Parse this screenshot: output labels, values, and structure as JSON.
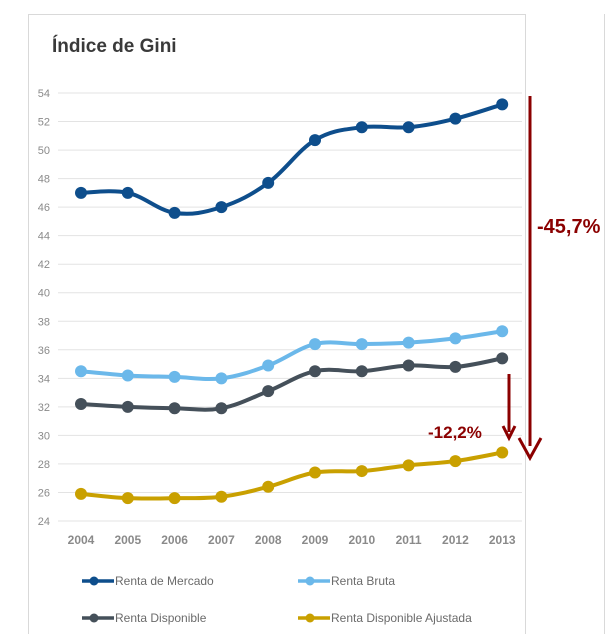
{
  "chart_data": {
    "type": "line",
    "title": "Índice de Gini",
    "categories": [
      "2004",
      "2005",
      "2006",
      "2007",
      "2008",
      "2009",
      "2010",
      "2011",
      "2012",
      "2013"
    ],
    "y_ticks": [
      "24",
      "26",
      "28",
      "30",
      "32",
      "34",
      "36",
      "38",
      "40",
      "42",
      "44",
      "46",
      "48",
      "50",
      "52",
      "54"
    ],
    "ylim": [
      24,
      54
    ],
    "series": [
      {
        "name": "Renta de Mercado",
        "color": "#0e4e8c",
        "values": [
          47.0,
          47.0,
          45.6,
          46.0,
          47.7,
          50.7,
          51.6,
          51.6,
          52.2,
          53.2
        ]
      },
      {
        "name": "Renta Bruta",
        "color": "#6bb8ea",
        "values": [
          34.5,
          34.2,
          34.1,
          34.0,
          34.9,
          36.4,
          36.4,
          36.5,
          36.8,
          37.3
        ]
      },
      {
        "name": "Renta Disponible",
        "color": "#45505a",
        "values": [
          32.2,
          32.0,
          31.9,
          31.9,
          33.1,
          34.5,
          34.5,
          34.9,
          34.8,
          35.4
        ]
      },
      {
        "name": "Renta Disponible Ajustada",
        "color": "#c9a000",
        "values": [
          25.9,
          25.6,
          25.6,
          25.7,
          26.4,
          27.4,
          27.5,
          27.9,
          28.2,
          28.8
        ]
      }
    ],
    "annotations": [
      {
        "label": "-45,7%",
        "color": "#8b0000"
      },
      {
        "label": "-12,2%",
        "color": "#8b0000"
      }
    ]
  }
}
